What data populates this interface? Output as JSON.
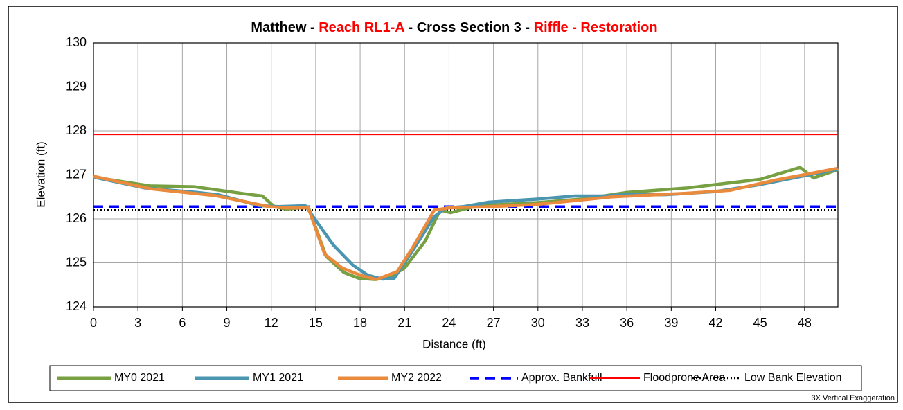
{
  "chart_data": {
    "type": "line",
    "title_parts": [
      {
        "text": "Matthew - ",
        "color": "#000000"
      },
      {
        "text": "Reach RL1-A",
        "color": "#ff0000"
      },
      {
        "text": " - Cross Section 3 - ",
        "color": "#000000"
      },
      {
        "text": "Riffle - Restoration",
        "color": "#ff0000"
      }
    ],
    "x_label": "Distance (ft)",
    "y_label": "Elevation (ft)",
    "note": "3X Vertical Exaggeration",
    "xlim": [
      0,
      50.25
    ],
    "ylim": [
      124,
      130
    ],
    "xticks": [
      0,
      3,
      6,
      9,
      12,
      15,
      18,
      21,
      24,
      27,
      30,
      33,
      36,
      39,
      42,
      45,
      48
    ],
    "yticks": [
      124,
      125,
      126,
      127,
      128,
      129,
      130
    ],
    "grid": true,
    "series": [
      {
        "name": "MY0 2021",
        "color": "#77a043",
        "x": [
          0,
          3.8,
          6.8,
          10.2,
          11.4,
          12.2,
          13,
          14.5,
          15.7,
          16.9,
          17.9,
          19,
          20,
          21,
          22.4,
          23.4,
          24.1,
          25,
          26,
          30,
          33,
          36,
          40,
          45,
          47.7,
          48.6,
          50.25
        ],
        "values": [
          126.95,
          126.75,
          126.73,
          126.57,
          126.52,
          126.28,
          126.22,
          126.27,
          125.15,
          124.78,
          124.65,
          124.62,
          124.68,
          124.88,
          125.5,
          126.2,
          126.14,
          126.22,
          126.3,
          126.37,
          126.45,
          126.6,
          126.7,
          126.9,
          127.17,
          126.93,
          127.12
        ]
      },
      {
        "name": "MY1 2021",
        "color": "#4a95b0",
        "x": [
          0,
          3.5,
          7,
          8.4,
          11.2,
          12.5,
          14.3,
          16.2,
          17.5,
          18.5,
          19.5,
          20.3,
          21.4,
          23,
          23.8,
          25,
          26.7,
          30,
          32.5,
          34.4,
          36,
          38.6,
          42,
          45,
          50.25
        ],
        "values": [
          126.95,
          126.7,
          126.6,
          126.55,
          126.3,
          126.28,
          126.3,
          125.4,
          124.95,
          124.72,
          124.63,
          124.65,
          125.2,
          126.05,
          126.25,
          126.28,
          126.38,
          126.45,
          126.52,
          126.52,
          126.55,
          126.55,
          126.62,
          126.78,
          127.13
        ]
      },
      {
        "name": "MY2 2022",
        "color": "#ea8a3c",
        "x": [
          0,
          3.9,
          8.2,
          11.8,
          13,
          14.5,
          15.6,
          16.8,
          18,
          19.1,
          20.5,
          21.5,
          22.5,
          23,
          24,
          27,
          30,
          35,
          40,
          43,
          46,
          50.25
        ],
        "values": [
          126.97,
          126.68,
          126.53,
          126.28,
          126.25,
          126.25,
          125.2,
          124.88,
          124.72,
          124.62,
          124.8,
          125.32,
          125.9,
          126.2,
          126.25,
          126.28,
          126.33,
          126.5,
          126.58,
          126.65,
          126.88,
          127.15
        ]
      }
    ],
    "reference_lines": [
      {
        "name": "Approx. Bankfull",
        "value": 126.28,
        "color": "#0000ff",
        "dash": "dashed"
      },
      {
        "name": "Floodprone Area",
        "value": 127.92,
        "color": "#ff0000",
        "dash": "solid"
      },
      {
        "name": "Low Bank Elevation",
        "value": 126.2,
        "color": "#000000",
        "dash": "dotted"
      }
    ]
  }
}
